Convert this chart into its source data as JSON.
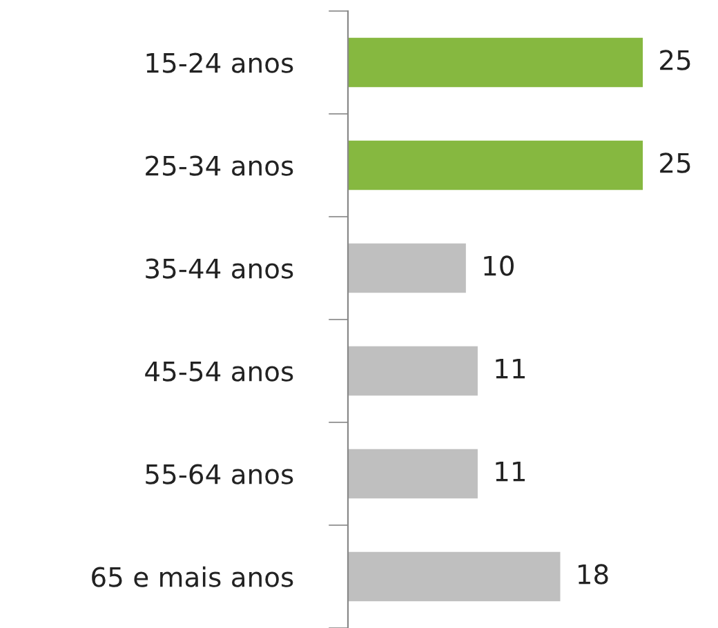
{
  "chart_data": {
    "type": "bar",
    "orientation": "horizontal",
    "categories": [
      "15-24 anos",
      "25-34 anos",
      "35-44 anos",
      "45-54 anos",
      "55-64 anos",
      "65 e mais anos"
    ],
    "values": [
      25,
      25,
      10,
      11,
      11,
      18
    ],
    "colors": [
      "#86b840",
      "#86b840",
      "#bfbfbf",
      "#bfbfbf",
      "#bfbfbf",
      "#bfbfbf"
    ],
    "data_labels": true,
    "grid": false,
    "legend": false
  }
}
